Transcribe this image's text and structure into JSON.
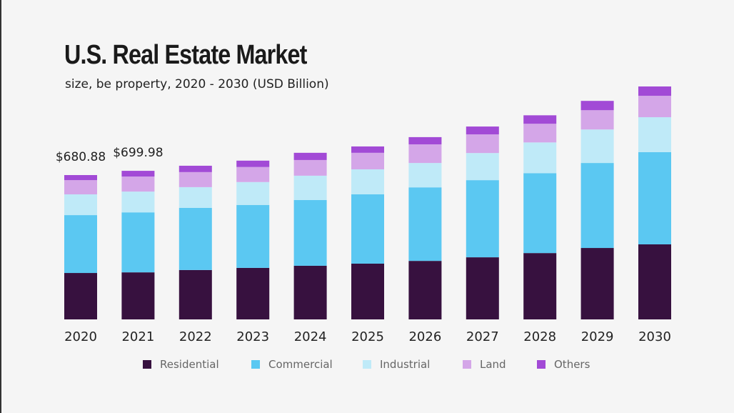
{
  "chart_data": {
    "type": "bar",
    "stacked": true,
    "title": "U.S. Real Estate Market",
    "subtitle": "size, be property, 2020 - 2030 (USD Billion)",
    "xlabel": "",
    "ylabel": "",
    "ylim": [
      0,
      1100
    ],
    "grid": false,
    "legend_position": "bottom",
    "categories": [
      "2020",
      "2021",
      "2022",
      "2023",
      "2024",
      "2025",
      "2026",
      "2027",
      "2028",
      "2029",
      "2030"
    ],
    "series": [
      {
        "name": "Residential",
        "color": "#37113f",
        "values": [
          219,
          222,
          233,
          243,
          253,
          263,
          276,
          293,
          313,
          337,
          354
        ]
      },
      {
        "name": "Commercial",
        "color": "#5bc8f2",
        "values": [
          273,
          283,
          293,
          297,
          310,
          327,
          347,
          364,
          377,
          401,
          435
        ]
      },
      {
        "name": "Industrial",
        "color": "#bfeaf8",
        "values": [
          98,
          98,
          98,
          108,
          115,
          118,
          115,
          128,
          145,
          158,
          165
        ]
      },
      {
        "name": "Land",
        "color": "#d4a6e8",
        "values": [
          67,
          71,
          71,
          71,
          74,
          78,
          88,
          88,
          88,
          91,
          101
        ]
      },
      {
        "name": "Others",
        "color": "#a24ad6",
        "values": [
          24,
          27,
          30,
          30,
          34,
          30,
          34,
          37,
          40,
          44,
          44
        ]
      }
    ],
    "data_labels": [
      {
        "category": "2020",
        "text": "$680.88"
      },
      {
        "category": "2021",
        "text": "$699.98"
      }
    ]
  }
}
